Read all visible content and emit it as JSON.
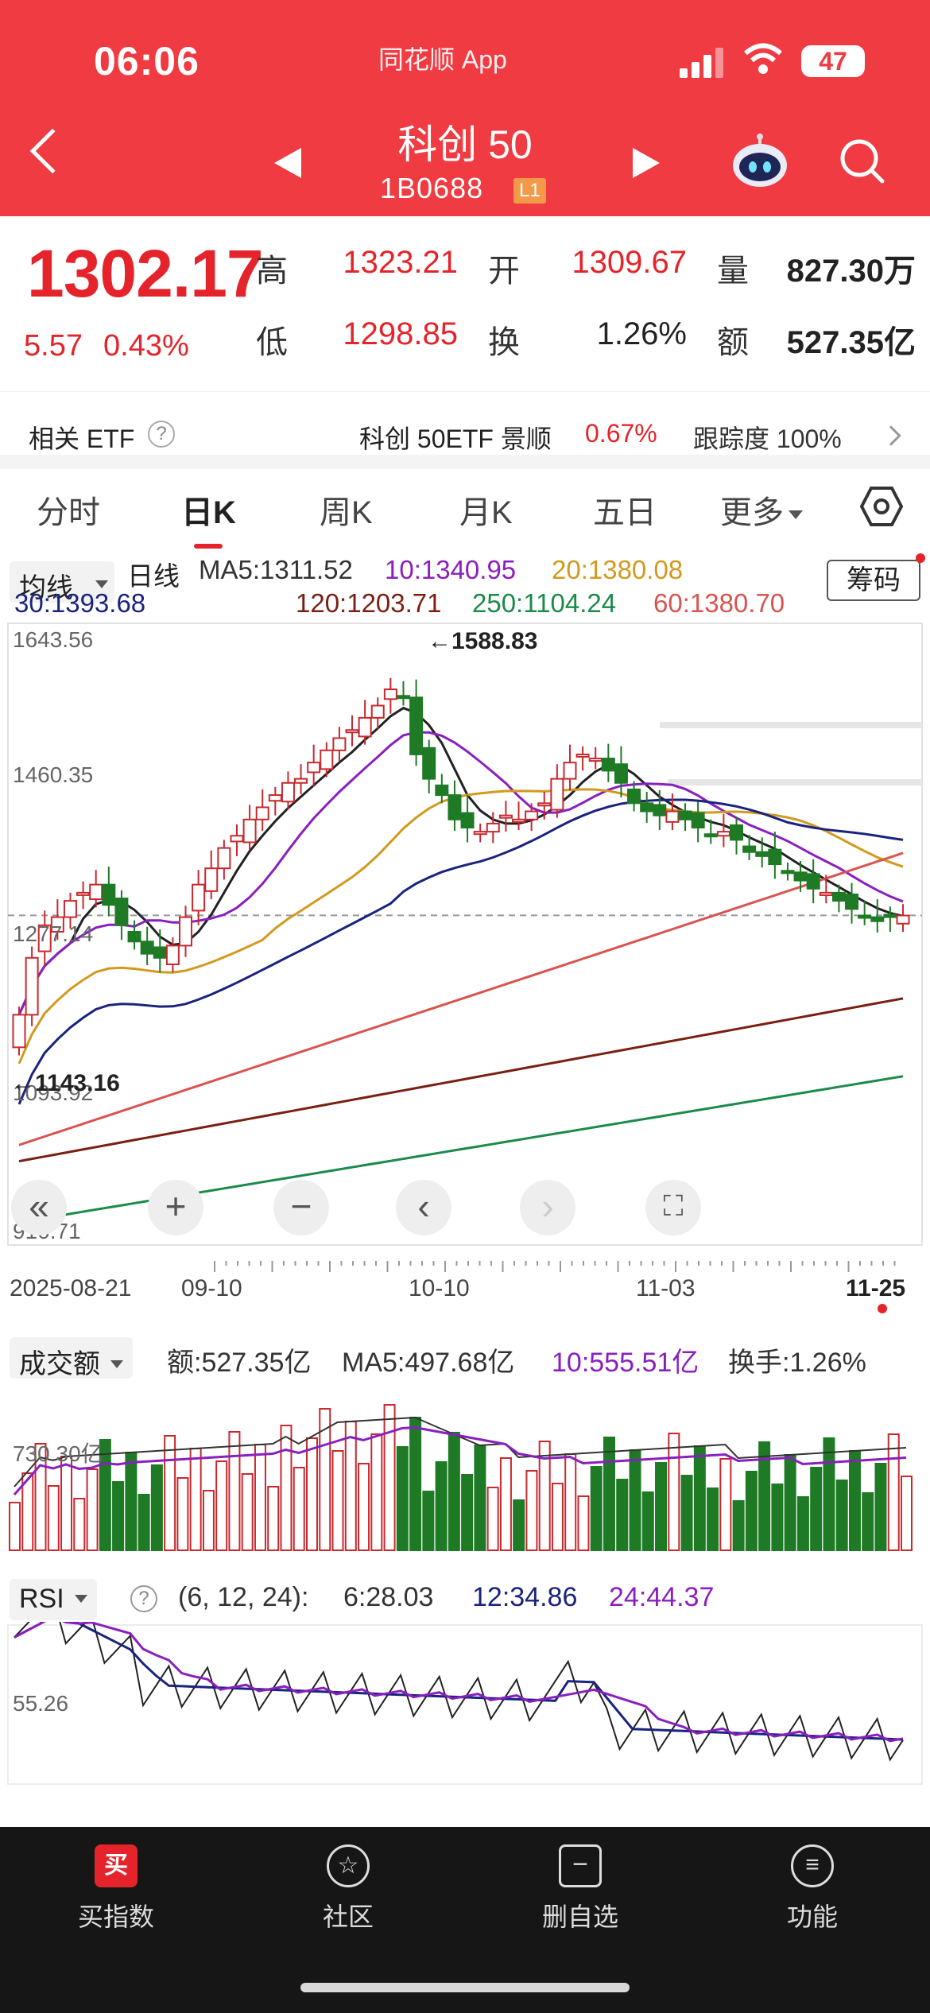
{
  "status_bar": {
    "time": "06:06",
    "app_name": "同花顺 App",
    "battery": "47"
  },
  "header": {
    "title": "科创 50",
    "code": "1B0688",
    "level_badge": "L1"
  },
  "quote": {
    "price": "1302.17",
    "change": "5.57",
    "change_pct": "0.43%",
    "high_label": "高",
    "high": "1323.21",
    "low_label": "低",
    "low": "1298.85",
    "open_label": "开",
    "open": "1309.67",
    "turnover_label": "换",
    "turnover": "1.26%",
    "volume_label": "量",
    "volume": "827.30万",
    "amount_label": "额",
    "amount": "527.35亿"
  },
  "etf": {
    "label": "相关 ETF",
    "name": "科创 50ETF 景顺",
    "pct": "0.67%",
    "track_label": "跟踪度",
    "track_value": "100%"
  },
  "tabs": [
    "分时",
    "日K",
    "周K",
    "月K",
    "五日",
    "更多"
  ],
  "ma_legend": {
    "selector": "均线",
    "type": "日线",
    "ma5": "MA5:1311.52",
    "ma10": "10:1340.95",
    "ma20": "20:1380.08",
    "ma30": "30:1393.68",
    "ma120": "120:1203.71",
    "ma250": "250:1104.24",
    "ma60": "60:1380.70",
    "chips": "筹码"
  },
  "colors": {
    "up": "#c8282e",
    "down": "#1e7a25",
    "ma5": "#222222",
    "ma10": "#8a1fbf",
    "ma20": "#d19a1e",
    "ma30": "#1a237e",
    "ma60": "#d9534f",
    "ma120": "#7a1f12",
    "ma250": "#1c8a4a"
  },
  "kline": {
    "ymax_label": "1643.56",
    "ymid_label": "1460.35",
    "y3_label": "1277.14",
    "y4_label": "1093.92",
    "ymin_label": "910.71",
    "high_annotation": "←1588.83",
    "low_annotation": "←1143.16"
  },
  "chart_data": {
    "type": "candlestick",
    "title": "",
    "x": [
      "2025-08-21",
      "",
      "",
      "",
      "",
      "",
      "",
      "",
      "",
      "",
      "",
      "",
      "",
      "09-10",
      "",
      "",
      "",
      "",
      "",
      "",
      "",
      "",
      "",
      "",
      "",
      "",
      "",
      "",
      "",
      "",
      "10-10",
      "",
      "",
      "",
      "",
      "",
      "",
      "",
      "",
      "",
      "",
      "",
      "",
      "",
      "",
      "",
      "",
      "11-03",
      "",
      "",
      "",
      "",
      "",
      "",
      "",
      "",
      "",
      "",
      "",
      "",
      "",
      "",
      "",
      "",
      "",
      "",
      "",
      "11-25"
    ],
    "ylim": [
      910.71,
      1643.56
    ],
    "close_last": 1302.17,
    "ma_levels": {
      "MA5": 1311.52,
      "MA10": 1340.95,
      "MA20": 1380.08,
      "MA30": 1393.68,
      "MA60": 1380.7,
      "MA120": 1203.71,
      "MA250": 1104.24
    },
    "annotations": {
      "high": 1588.83,
      "low": 1143.16
    }
  },
  "controls": {
    "zoom_in": "+",
    "zoom_out": "−"
  },
  "dates": {
    "d1": "2025-08-21",
    "d2": "09-10",
    "d3": "10-10",
    "d4": "11-03",
    "d5": "11-25"
  },
  "volume_panel": {
    "selector": "成交额",
    "amount": "额:527.35亿",
    "ma5": "MA5:497.68亿",
    "ma10": "10:555.51亿",
    "turnover": "换手:1.26%",
    "y_label": "730.30亿"
  },
  "rsi_panel": {
    "selector": "RSI",
    "params": "(6, 12, 24):",
    "rsi6": "6:28.03",
    "rsi12": "12:34.86",
    "rsi24": "24:44.37",
    "y_label": "55.26"
  },
  "bottom_nav": {
    "buy": "买指数",
    "community": "社区",
    "remove": "删自选",
    "functions": "功能",
    "buy_icon": "买"
  }
}
